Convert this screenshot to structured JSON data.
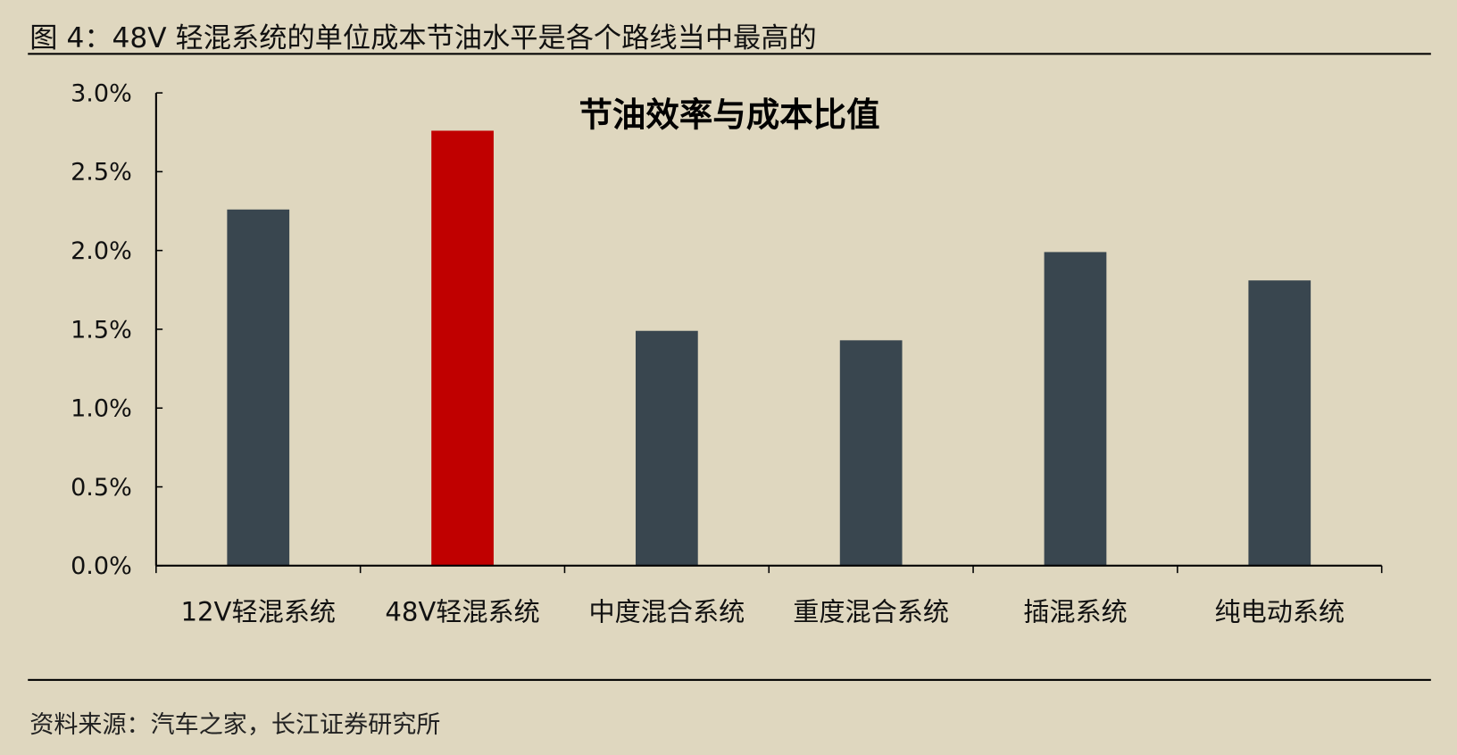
{
  "figure_title": "图 4：48V 轻混系统的单位成本节油水平是各个路线当中最高的",
  "source": "资料来源：汽车之家，长江证券研究所",
  "colors": {
    "background": "#dfd7bf",
    "bar_default": "#39464f",
    "bar_highlight": "#c00000"
  },
  "chart_data": {
    "type": "bar",
    "title": "节油效率与成本比值",
    "categories": [
      "12V轻混系统",
      "48V轻混系统",
      "中度混合系统",
      "重度混合系统",
      "插混系统",
      "纯电动系统"
    ],
    "values": [
      2.26,
      2.76,
      1.49,
      1.43,
      1.99,
      1.81
    ],
    "unit": "%",
    "highlight_index": 1,
    "ylim": [
      0,
      3.0
    ],
    "yticks": [
      "0.0%",
      "0.5%",
      "1.0%",
      "1.5%",
      "2.0%",
      "2.5%",
      "3.0%"
    ],
    "ytick_values": [
      0,
      0.5,
      1.0,
      1.5,
      2.0,
      2.5,
      3.0
    ],
    "grid": false,
    "legend": "none"
  }
}
